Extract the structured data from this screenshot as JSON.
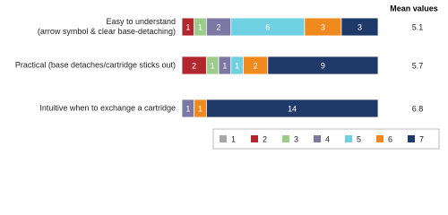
{
  "chart_data": {
    "type": "stacked_bar_horizontal",
    "categories": [
      "Easy to understand\n(arrow symbol & clear base-detaching)",
      "Practical (base detaches/cartridge sticks out)",
      "Intuitive when to exchange a cartridge"
    ],
    "series": [
      {
        "name": "1",
        "color": "#a6a6a6",
        "values": [
          0,
          0,
          0
        ]
      },
      {
        "name": "2",
        "color": "#b0282d",
        "values": [
          1,
          2,
          0
        ]
      },
      {
        "name": "3",
        "color": "#9ccb8c",
        "values": [
          1,
          1,
          0
        ]
      },
      {
        "name": "4",
        "color": "#7b78a3",
        "values": [
          2,
          1,
          1
        ]
      },
      {
        "name": "5",
        "color": "#6fd0e2",
        "values": [
          6,
          1,
          0
        ]
      },
      {
        "name": "6",
        "color": "#f08a1f",
        "values": [
          3,
          2,
          1
        ]
      },
      {
        "name": "7",
        "color": "#1f3a68",
        "values": [
          3,
          9,
          14
        ]
      }
    ],
    "mean_values_title": "Mean values",
    "mean_values": [
      5.1,
      5.7,
      6.8
    ],
    "legend": "bottom-right"
  }
}
